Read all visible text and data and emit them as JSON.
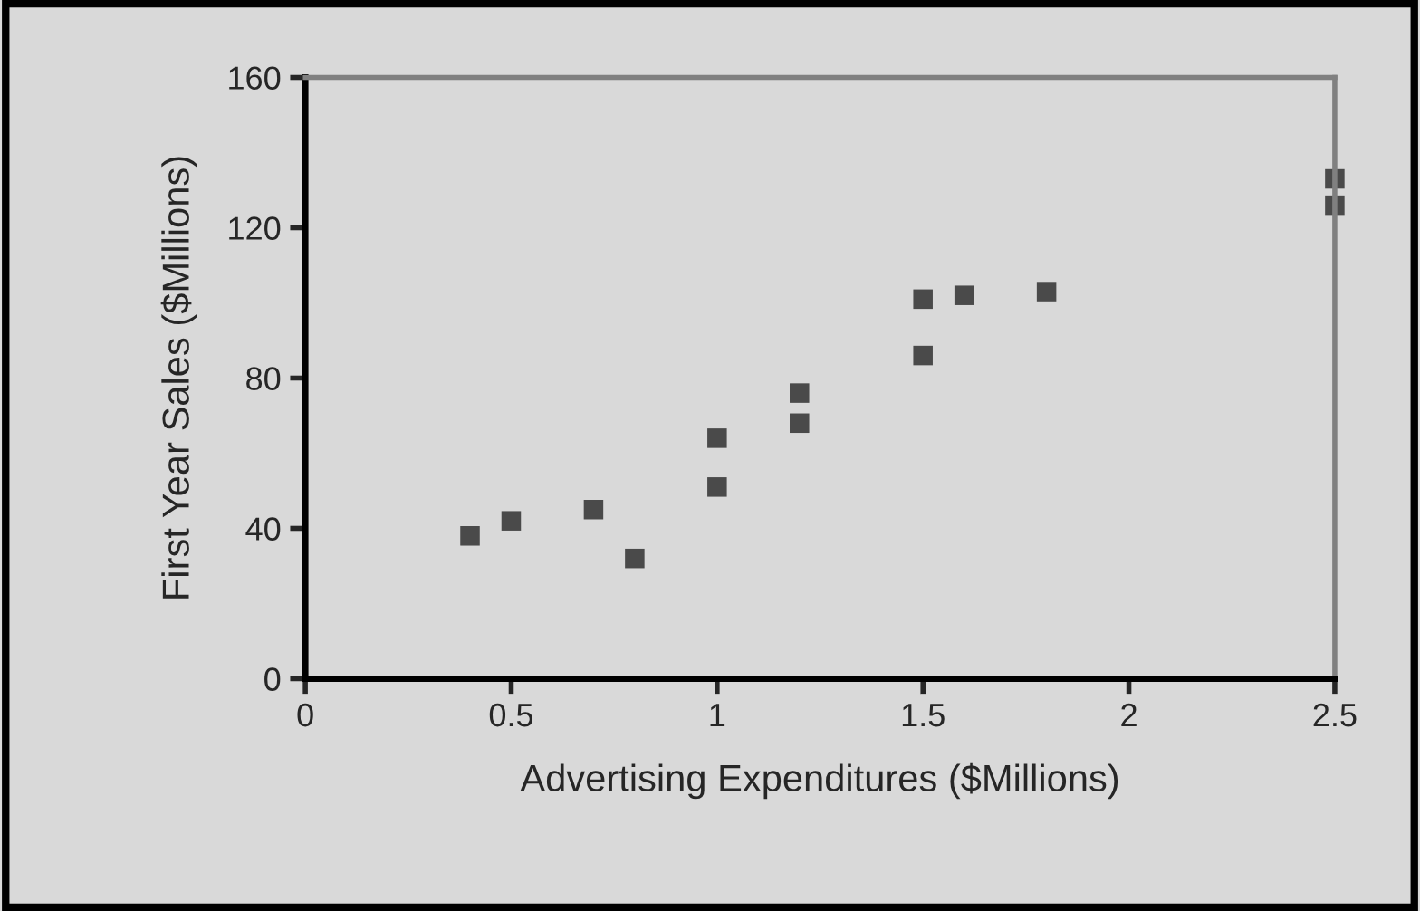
{
  "chart_data": {
    "type": "scatter",
    "xlabel": "Advertising Expenditures ($Millions)",
    "ylabel": "First Year Sales ($Millions)",
    "x": [
      0.4,
      0.5,
      0.7,
      0.8,
      1.0,
      1.0,
      1.2,
      1.2,
      1.5,
      1.5,
      1.6,
      1.8,
      2.5,
      2.5
    ],
    "values": [
      38,
      42,
      45,
      32,
      64,
      51,
      76,
      68,
      101,
      86,
      102,
      103,
      133,
      126
    ],
    "color": "#4a4a4a",
    "marker": "square",
    "grid": false,
    "xlim": [
      0,
      2.5
    ],
    "xticks": [
      0,
      0.5,
      1,
      1.5,
      2,
      2.5
    ],
    "ylim": [
      0,
      160
    ],
    "yticks": [
      0,
      40,
      80,
      120,
      160
    ]
  }
}
